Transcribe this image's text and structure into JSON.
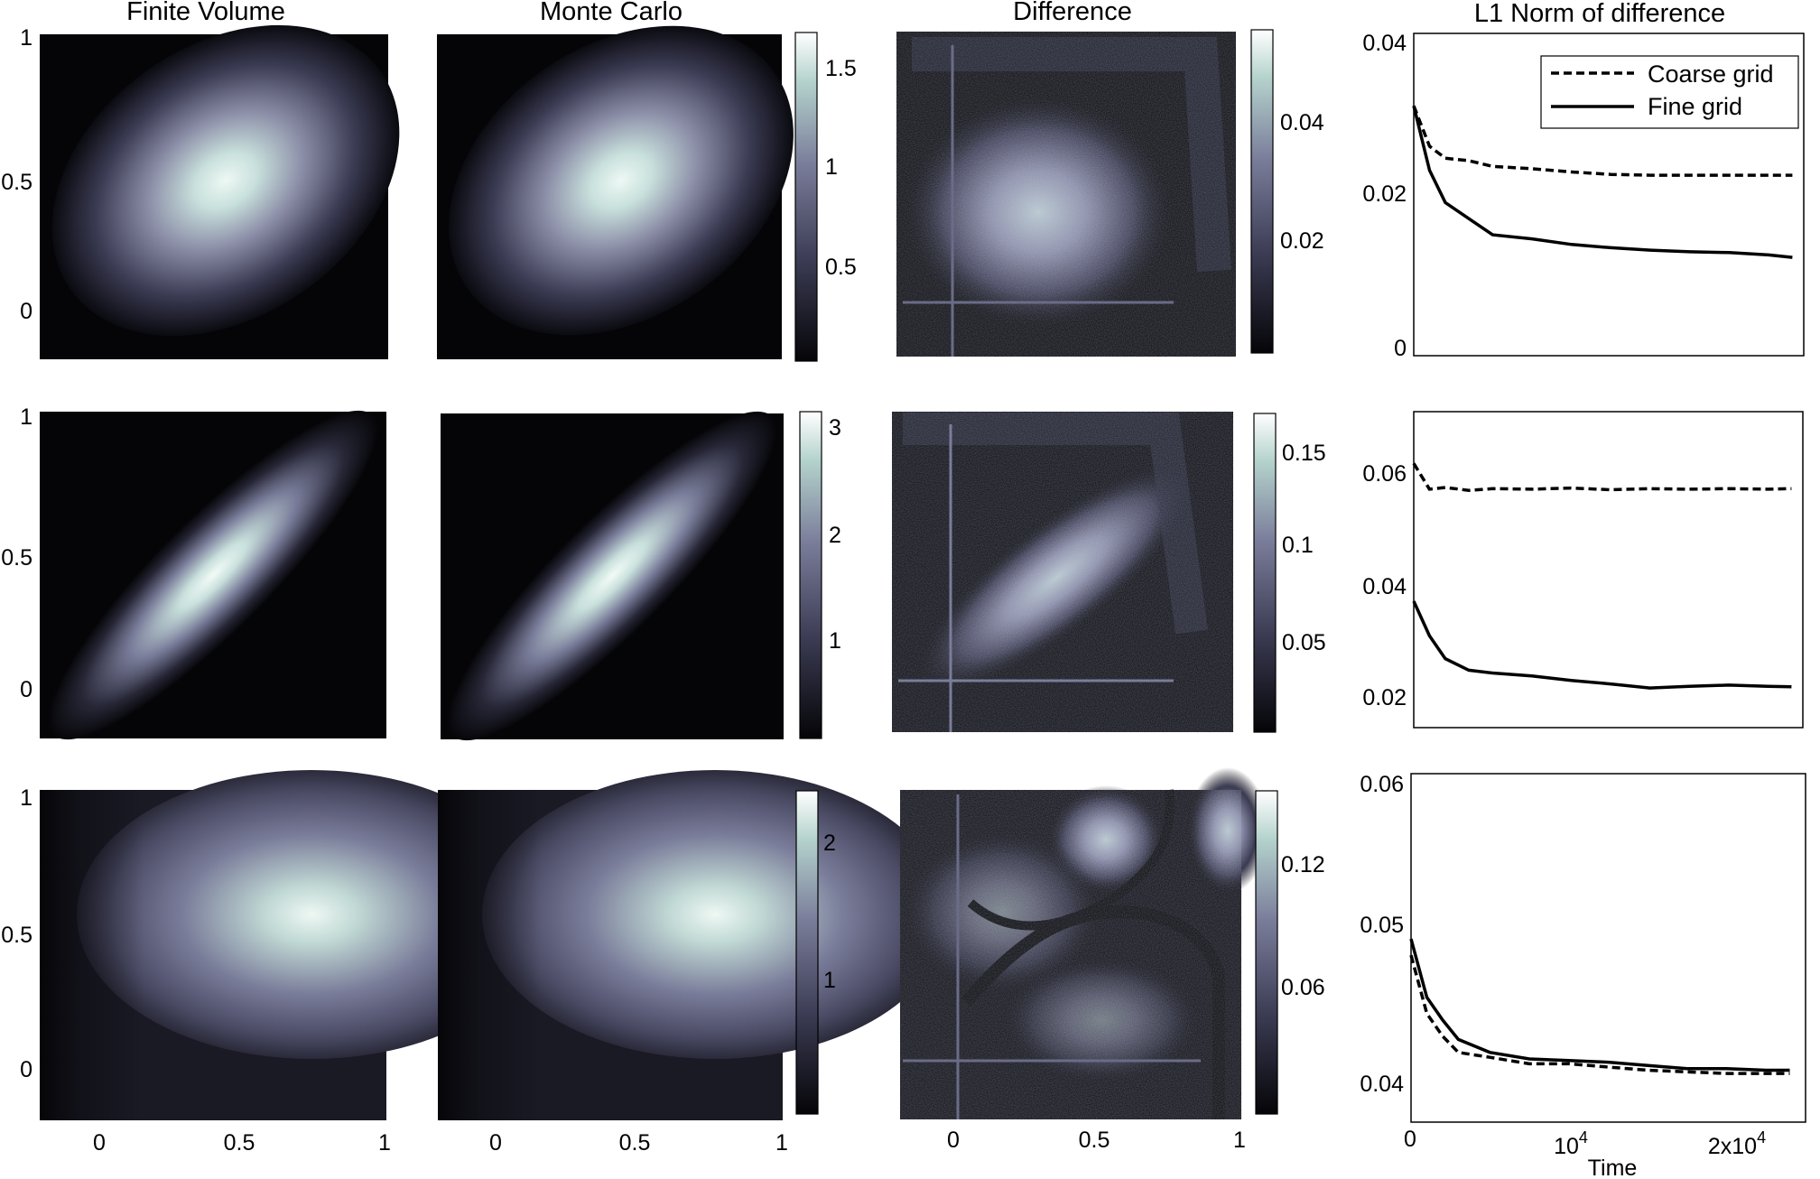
{
  "column_titles": {
    "finite_volume": "Finite Volume",
    "monte_carlo": "Monte Carlo",
    "difference": "Difference",
    "l1_norm": "L1 Norm of difference"
  },
  "colors": {
    "dark": "#050508",
    "mid": "#5a5a78",
    "light": "#c8e0dc",
    "white": "#ffffff"
  },
  "chart_data": [
    {
      "type": "heatmap",
      "panel": "row1-finite-volume",
      "title": "Finite Volume",
      "yticks": [
        "0",
        "0.5",
        "1"
      ],
      "peak": [
        0.5,
        0.55
      ]
    },
    {
      "type": "heatmap",
      "panel": "row1-monte-carlo",
      "title": "Monte Carlo",
      "peak": [
        0.5,
        0.55
      ]
    },
    {
      "type": "heatmap",
      "panel": "row1-colorbar",
      "ticks": [
        "0.5",
        "1",
        "1.5"
      ],
      "range": [
        0.1,
        1.65
      ]
    },
    {
      "type": "heatmap",
      "panel": "row1-difference",
      "title": "Difference"
    },
    {
      "type": "heatmap",
      "panel": "row1-diff-colorbar",
      "ticks": [
        "0.02",
        "0.04"
      ],
      "range": [
        0.002,
        0.054
      ]
    },
    {
      "type": "line",
      "panel": "row1-l1",
      "title": "L1 Norm of difference",
      "yticks": [
        "0",
        "0.02",
        "0.04"
      ],
      "ylim": [
        0,
        0.04
      ],
      "x": [
        0,
        0.1,
        0.2,
        0.35,
        0.5,
        0.75,
        1.0,
        1.25,
        1.5,
        1.75,
        2.0,
        2.25,
        2.4
      ],
      "series": [
        {
          "name": "Coarse grid",
          "style": "dashed",
          "values": [
            0.031,
            0.026,
            0.0245,
            0.0242,
            0.0235,
            0.0232,
            0.0228,
            0.0225,
            0.0224,
            0.0224,
            0.0224,
            0.0224,
            0.0224
          ]
        },
        {
          "name": "Fine grid",
          "style": "solid",
          "values": [
            0.031,
            0.023,
            0.019,
            0.017,
            0.015,
            0.0145,
            0.0138,
            0.0134,
            0.0131,
            0.0129,
            0.0128,
            0.0125,
            0.0122
          ]
        }
      ],
      "legend": "top-right"
    },
    {
      "type": "heatmap",
      "panel": "row2-finite-volume",
      "yticks": [
        "0",
        "0.5",
        "1"
      ],
      "peak": [
        0.5,
        0.5
      ]
    },
    {
      "type": "heatmap",
      "panel": "row2-monte-carlo",
      "peak": [
        0.5,
        0.5
      ]
    },
    {
      "type": "heatmap",
      "panel": "row2-colorbar",
      "ticks": [
        "1",
        "2",
        "3"
      ],
      "range": [
        0.1,
        3.2
      ]
    },
    {
      "type": "heatmap",
      "panel": "row2-difference"
    },
    {
      "type": "heatmap",
      "panel": "row2-diff-colorbar",
      "ticks": [
        "0.05",
        "0.1",
        "0.15"
      ],
      "range": [
        0.01,
        0.17
      ]
    },
    {
      "type": "line",
      "panel": "row2-l1",
      "yticks": [
        "0.02",
        "0.04",
        "0.06"
      ],
      "ylim": [
        0.015,
        0.07
      ],
      "x": [
        0,
        0.1,
        0.2,
        0.35,
        0.5,
        0.75,
        1.0,
        1.25,
        1.5,
        1.75,
        2.0,
        2.25,
        2.4
      ],
      "series": [
        {
          "style": "dashed",
          "values": [
            0.061,
            0.0565,
            0.0568,
            0.0563,
            0.0566,
            0.0565,
            0.0567,
            0.0564,
            0.0566,
            0.0565,
            0.0566,
            0.0565,
            0.0566
          ]
        },
        {
          "style": "solid",
          "values": [
            0.037,
            0.031,
            0.027,
            0.025,
            0.0245,
            0.024,
            0.0232,
            0.0226,
            0.0219,
            0.0222,
            0.0224,
            0.0222,
            0.0221
          ]
        }
      ]
    },
    {
      "type": "heatmap",
      "panel": "row3-finite-volume",
      "yticks": [
        "0",
        "0.5",
        "1"
      ],
      "xticks": [
        "0",
        "0.5",
        "1"
      ],
      "peak": [
        0.8,
        0.55
      ]
    },
    {
      "type": "heatmap",
      "panel": "row3-monte-carlo",
      "xticks": [
        "0",
        "0.5",
        "1"
      ],
      "peak": [
        0.8,
        0.55
      ]
    },
    {
      "type": "heatmap",
      "panel": "row3-colorbar",
      "ticks": [
        "1",
        "2"
      ],
      "range": [
        0.1,
        2.4
      ]
    },
    {
      "type": "heatmap",
      "panel": "row3-difference",
      "xticks": [
        "0",
        "0.5",
        "1"
      ]
    },
    {
      "type": "heatmap",
      "panel": "row3-diff-colorbar",
      "ticks": [
        "0.06",
        "0.12"
      ],
      "range": [
        0.008,
        0.148
      ]
    },
    {
      "type": "line",
      "panel": "row3-l1",
      "xlabel": "Time",
      "xticks": [
        "0",
        "10^4",
        "2x10^4"
      ],
      "xlim": [
        0,
        25000
      ],
      "yticks": [
        "0.04",
        "0.05",
        "0.06"
      ],
      "ylim": [
        0.0395,
        0.061
      ],
      "x": [
        0,
        1000,
        2000,
        3000,
        5000,
        7500,
        10000,
        12500,
        15000,
        17500,
        20000,
        22500,
        24000
      ],
      "series": [
        {
          "style": "dashed",
          "values": [
            0.0498,
            0.0462,
            0.0448,
            0.0438,
            0.0435,
            0.0431,
            0.0431,
            0.0429,
            0.0427,
            0.0426,
            0.0425,
            0.0425,
            0.0425
          ]
        },
        {
          "style": "solid",
          "values": [
            0.0508,
            0.0472,
            0.0458,
            0.0446,
            0.0438,
            0.0434,
            0.0433,
            0.0432,
            0.043,
            0.0428,
            0.0428,
            0.0427,
            0.0427
          ]
        }
      ]
    }
  ],
  "tick_labels": {
    "row_y": [
      "1",
      "0.5",
      "0"
    ],
    "bottom_x": [
      "0",
      "0.5",
      "1"
    ],
    "cb1": [
      "1.5",
      "1",
      "0.5"
    ],
    "cb1d": [
      "0.04",
      "0.02"
    ],
    "l1_r1": [
      "0.04",
      "0.02",
      "0"
    ],
    "cb2": [
      "3",
      "2",
      "1"
    ],
    "cb2d": [
      "0.15",
      "0.1",
      "0.05"
    ],
    "l1_r2": [
      "0.06",
      "0.04",
      "0.02"
    ],
    "cb3": [
      "2",
      "1"
    ],
    "cb3d": [
      "0.12",
      "0.06"
    ],
    "l1_r3": [
      "0.06",
      "0.05",
      "0.04"
    ],
    "l1_r3_x": [
      "0",
      "10",
      "2x10"
    ],
    "exp": "4",
    "time_label": "Time"
  },
  "legend": {
    "coarse": "Coarse grid",
    "fine": "Fine grid"
  }
}
